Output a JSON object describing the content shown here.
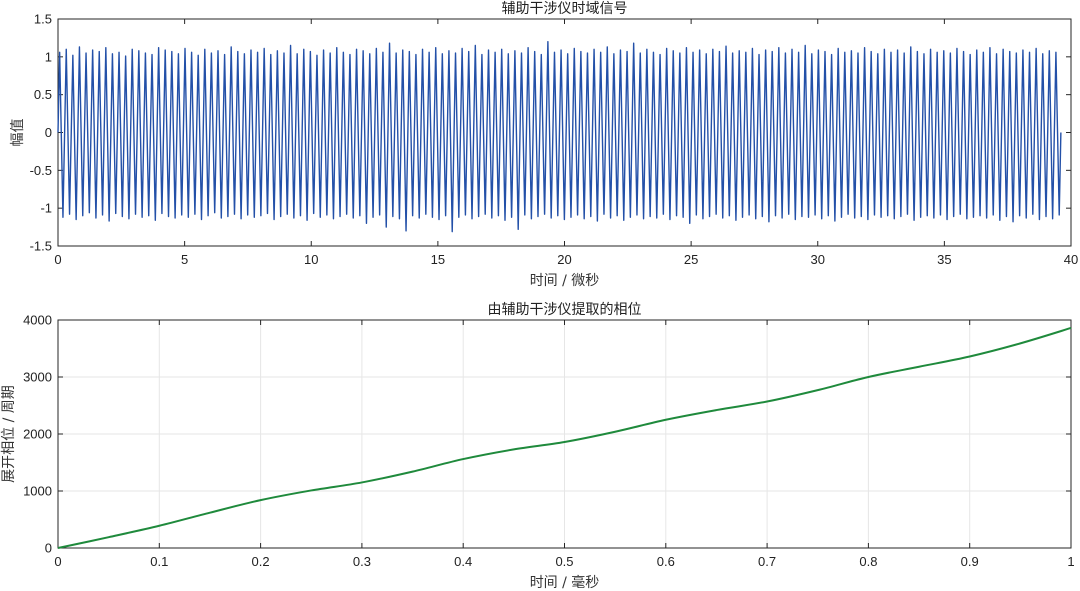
{
  "chart_data": [
    {
      "type": "line",
      "title": "辅助干涉仪时域信号",
      "xlabel": "时间 / 微秒",
      "ylabel": "幅值",
      "xlim": [
        0,
        40
      ],
      "ylim": [
        -1.5,
        1.5
      ],
      "xticks": [
        0,
        5,
        10,
        15,
        20,
        25,
        30,
        35,
        40
      ],
      "yticks": [
        -1.5,
        -1,
        -0.5,
        0,
        0.5,
        1,
        1.5
      ],
      "xtick_labels": [
        "0",
        "5",
        "10",
        "15",
        "20",
        "25",
        "30",
        "35",
        "40"
      ],
      "ytick_labels": [
        "-1.5",
        "-1",
        "-0.5",
        "0",
        "0.5",
        "1",
        "1.5"
      ],
      "grid": false,
      "color": "#2350a8",
      "series": [
        {
          "x_range": [
            0,
            39.6
          ],
          "cycles": 152,
          "peaks": [
            1.06,
            1.1,
            1.02,
            1.13,
            1.05,
            1.09,
            1.07,
            1.12,
            1.04,
            1.06,
            1.01,
            1.1,
            1.08,
            1.05,
            1.03,
            1.12,
            1.09,
            1.07,
            1.04,
            1.11,
            1.06,
            1.02,
            1.1,
            1.05,
            1.08,
            1.03,
            1.13,
            1.07,
            1.04,
            1.09,
            1.06,
            1.11,
            1.03,
            1.08,
            1.05,
            1.15,
            1.04,
            1.1,
            1.07,
            1.02,
            1.09,
            1.05,
            1.12,
            1.06,
            1.03,
            1.1,
            1.08,
            1.04,
            1.11,
            1.06,
            1.18,
            1.05,
            1.09,
            1.07,
            1.03,
            1.1,
            1.06,
            1.12,
            1.04,
            1.08,
            1.05,
            1.11,
            1.07,
            1.15,
            1.03,
            1.09,
            1.06,
            1.1,
            1.04,
            1.08,
            1.05,
            1.12,
            1.07,
            1.03,
            1.2,
            1.06,
            1.09,
            1.04,
            1.11,
            1.07,
            1.05,
            1.1,
            1.06,
            1.13,
            1.04,
            1.09,
            1.07,
            1.18,
            1.05,
            1.1,
            1.06,
            1.03,
            1.11,
            1.08,
            1.05,
            1.12,
            1.06,
            1.09,
            1.04,
            1.1,
            1.07,
            1.14,
            1.05,
            1.08,
            1.06,
            1.11,
            1.03,
            1.09,
            1.07,
            1.12,
            1.05,
            1.1,
            1.06,
            1.15,
            1.04,
            1.09,
            1.07,
            1.03,
            1.11,
            1.06,
            1.08,
            1.05,
            1.12,
            1.07,
            1.04,
            1.1,
            1.06,
            1.09,
            1.05,
            1.13,
            1.07,
            1.04,
            1.1,
            1.06,
            1.08,
            1.05,
            1.11,
            1.07,
            1.03,
            1.09,
            1.06,
            1.12,
            1.04,
            1.1,
            1.07,
            1.05,
            1.09,
            1.06,
            1.11,
            1.04,
            1.08,
            1.06
          ],
          "troughs": [
            -1.12,
            -1.08,
            -1.15,
            -1.1,
            -1.06,
            -1.13,
            -1.09,
            -1.17,
            -1.07,
            -1.11,
            -1.14,
            -1.08,
            -1.12,
            -1.1,
            -1.16,
            -1.07,
            -1.11,
            -1.13,
            -1.09,
            -1.12,
            -1.08,
            -1.15,
            -1.1,
            -1.06,
            -1.13,
            -1.11,
            -1.08,
            -1.14,
            -1.09,
            -1.12,
            -1.1,
            -1.07,
            -1.15,
            -1.11,
            -1.08,
            -1.13,
            -1.1,
            -1.16,
            -1.07,
            -1.12,
            -1.09,
            -1.14,
            -1.11,
            -1.08,
            -1.13,
            -1.1,
            -1.2,
            -1.12,
            -1.09,
            -1.25,
            -1.11,
            -1.14,
            -1.3,
            -1.1,
            -1.13,
            -1.08,
            -1.12,
            -1.15,
            -1.1,
            -1.31,
            -1.12,
            -1.09,
            -1.14,
            -1.11,
            -1.08,
            -1.13,
            -1.1,
            -1.16,
            -1.12,
            -1.28,
            -1.09,
            -1.14,
            -1.11,
            -1.08,
            -1.13,
            -1.1,
            -1.15,
            -1.12,
            -1.09,
            -1.14,
            -1.11,
            -1.17,
            -1.08,
            -1.13,
            -1.1,
            -1.16,
            -1.12,
            -1.09,
            -1.14,
            -1.11,
            -1.13,
            -1.08,
            -1.15,
            -1.1,
            -1.12,
            -1.2,
            -1.09,
            -1.14,
            -1.11,
            -1.08,
            -1.13,
            -1.1,
            -1.16,
            -1.12,
            -1.09,
            -1.14,
            -1.11,
            -1.18,
            -1.1,
            -1.13,
            -1.08,
            -1.15,
            -1.11,
            -1.12,
            -1.09,
            -1.14,
            -1.1,
            -1.17,
            -1.12,
            -1.08,
            -1.13,
            -1.11,
            -1.15,
            -1.09,
            -1.12,
            -1.1,
            -1.14,
            -1.11,
            -1.08,
            -1.16,
            -1.12,
            -1.1,
            -1.13,
            -1.09,
            -1.15,
            -1.11,
            -1.08,
            -1.14,
            -1.12,
            -1.1,
            -1.13,
            -1.09,
            -1.16,
            -1.11,
            -1.18,
            -1.1,
            -1.13,
            -1.08,
            -1.15,
            -1.11,
            -1.14,
            -1.09
          ]
        }
      ]
    },
    {
      "type": "line",
      "title": "由辅助干涉仪提取的相位",
      "xlabel": "时间 / 毫秒",
      "ylabel": "展开相位 / 周期",
      "xlim": [
        0,
        1
      ],
      "ylim": [
        0,
        4000
      ],
      "xticks": [
        0,
        0.1,
        0.2,
        0.3,
        0.4,
        0.5,
        0.6,
        0.7,
        0.8,
        0.9,
        1
      ],
      "yticks": [
        0,
        1000,
        2000,
        3000,
        4000
      ],
      "xtick_labels": [
        "0",
        "0.1",
        "0.2",
        "0.3",
        "0.4",
        "0.5",
        "0.6",
        "0.7",
        "0.8",
        "0.9",
        "1"
      ],
      "ytick_labels": [
        "0",
        "1000",
        "2000",
        "3000",
        "4000"
      ],
      "grid": true,
      "color": "#1f8a3c",
      "series": [
        {
          "x": [
            0,
            0.05,
            0.1,
            0.15,
            0.2,
            0.25,
            0.3,
            0.35,
            0.4,
            0.45,
            0.5,
            0.55,
            0.6,
            0.65,
            0.7,
            0.75,
            0.8,
            0.85,
            0.9,
            0.95,
            1
          ],
          "y": [
            0,
            190,
            390,
            620,
            840,
            1010,
            1150,
            1340,
            1560,
            1730,
            1860,
            2040,
            2250,
            2420,
            2570,
            2770,
            3000,
            3180,
            3360,
            3590,
            3860
          ]
        }
      ]
    }
  ]
}
